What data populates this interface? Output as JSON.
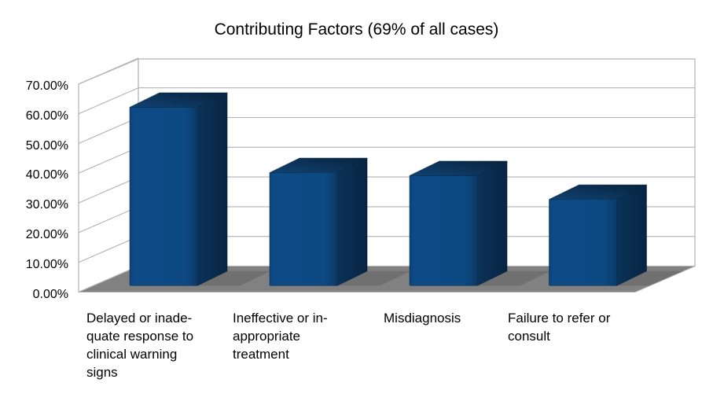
{
  "chart_data": {
    "type": "bar",
    "style": "3d-column",
    "title": "Contributing Factors (69% of all cases)",
    "categories": [
      "Delayed or inadequate response to clinical warning signs",
      "Ineffective or inappropriate treatment",
      "Misdiagnosis",
      "Failure to refer or consult"
    ],
    "category_label_lines": [
      [
        "Delayed or inade-",
        "quate response to",
        "clinical warning",
        "signs"
      ],
      [
        "Ineffective or in-",
        "appropriate",
        "treatment"
      ],
      [
        "Misdiagnosis"
      ],
      [
        "Failure to refer or",
        "consult"
      ]
    ],
    "values": [
      60,
      38,
      37,
      29
    ],
    "value_unit": "percent",
    "y_axis": {
      "min": 0,
      "max": 70,
      "step": 10,
      "ticks_top_to_bottom": [
        "70.00%",
        "60.00%",
        "50.00%",
        "40.00%",
        "30.00%",
        "20.00%",
        "10.00%",
        "0.00%"
      ]
    },
    "grid": true,
    "legend": "none",
    "colors": {
      "bar_front": "#0d4a84",
      "bar_top": "#0a3055",
      "bar_side": "#0a2f54",
      "floor": "#818181",
      "wall": "#ffffff",
      "gridline": "#b2b2b2",
      "text": "#000000",
      "background": "#ffffff"
    }
  }
}
